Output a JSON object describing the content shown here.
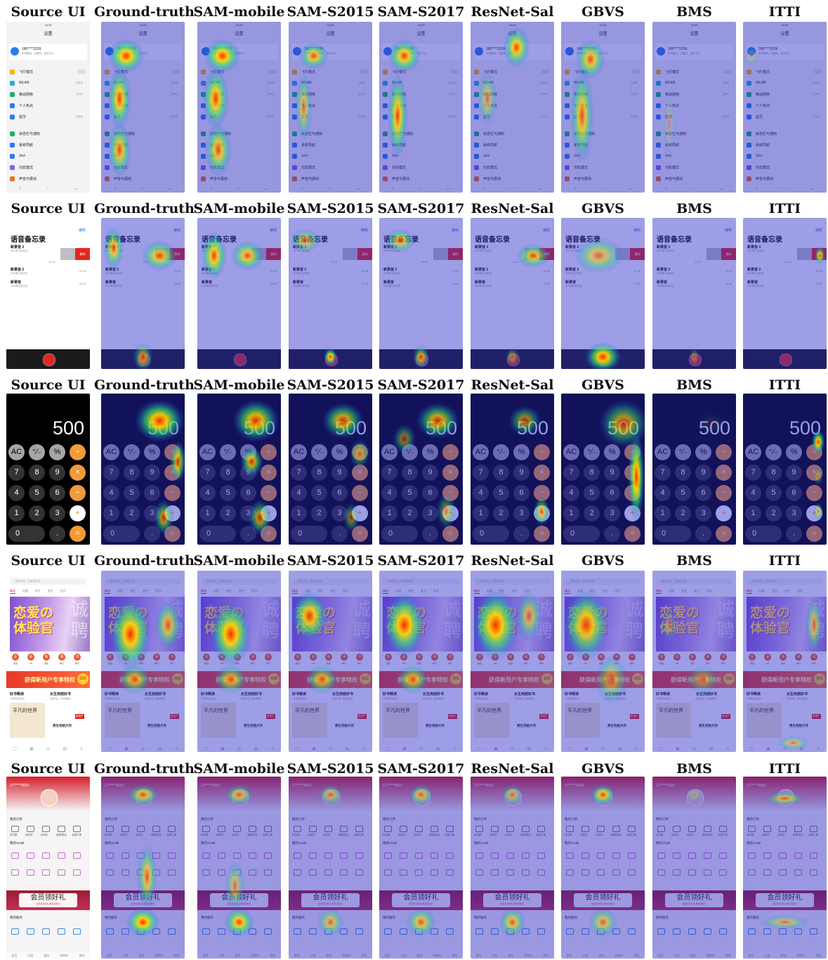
{
  "columns": [
    "Source UI",
    "Ground-truth",
    "SAM-mobile",
    "SAM-S2015",
    "SAM-S2017",
    "ResNet-Sal",
    "GBVS",
    "BMS",
    "ITTI"
  ],
  "rows": [
    {
      "id": "settings",
      "title": "设置",
      "time": "16:35",
      "account": {
        "name": "186****2239",
        "sub": "手机服务、云服务、会员中心"
      },
      "items": [
        {
          "label": "飞行模式",
          "value": "",
          "color": "#f4b400"
        },
        {
          "label": "WLAN",
          "value": "已关闭",
          "color": "#29a8e0"
        },
        {
          "label": "移动网络",
          "value": "无SIM",
          "color": "#1bb26b"
        },
        {
          "label": "个人热点",
          "value": "",
          "color": "#2b7de9"
        },
        {
          "label": "蓝牙",
          "value": "已关闭",
          "color": "#2b7de9"
        },
        {
          "label": "状态栏与通知",
          "value": "",
          "color": "#1bb26b"
        },
        {
          "label": "系统导航",
          "value": "",
          "color": "#2b7de9"
        },
        {
          "label": "Jovi",
          "value": "",
          "color": "#2b7de9"
        },
        {
          "label": "勿扰模式",
          "value": "",
          "color": "#8a5cf5"
        },
        {
          "label": "声音与振动",
          "value": "",
          "color": "#f26b1d"
        }
      ]
    },
    {
      "id": "memo",
      "edit": "编辑",
      "title": "语音备忘录",
      "items": [
        {
          "name": "新录音 3",
          "date": "2017年7月26日",
          "dur": "00:16"
        },
        {
          "name": "",
          "date": "",
          "dur": "01:13"
        },
        {
          "name": "新录音 2",
          "date": "2016年10月8日",
          "dur": "01:16"
        },
        {
          "name": "新录音",
          "date": "2016年9月18日",
          "dur": "03:28"
        }
      ],
      "swipe": [
        "···",
        "删除"
      ]
    },
    {
      "id": "calculator",
      "display": "500",
      "keys": [
        [
          "AC",
          "⁺∕₋",
          "%",
          "÷"
        ],
        [
          "7",
          "8",
          "9",
          "×"
        ],
        [
          "4",
          "5",
          "6",
          "−"
        ],
        [
          "1",
          "2",
          "3",
          "+"
        ],
        [
          "0",
          ".",
          "="
        ]
      ]
    },
    {
      "id": "reader",
      "search": "搜索书名、作者或分类",
      "tabs": [
        "精选",
        "出版",
        "男生",
        "女生",
        "包月"
      ],
      "banner": {
        "line1": "恋爱の",
        "line2": "体验官",
        "side": "诚聘"
      },
      "icons": [
        {
          "glyph": "全",
          "label": "频道"
        },
        {
          "glyph": "会",
          "label": "VIP"
        },
        {
          "glyph": "免",
          "label": "免费"
        },
        {
          "glyph": "读",
          "label": "排行"
        },
        {
          "glyph": "书",
          "label": "排行"
        }
      ],
      "promo": "获得新用户专享特权",
      "go": "GO",
      "sections": [
        {
          "title": "好书畅读",
          "sub": "千部精品免费读"
        },
        {
          "title": "女生完结好书",
          "sub": "完结作品，每本都精彩"
        }
      ],
      "cards": [
        "平凡的世界",
        "男生完结大作",
        "新用户"
      ]
    },
    {
      "id": "mall",
      "phone": "177****4553",
      "orders": "我的订单",
      "order_items": [
        "待付款",
        "待收货",
        "待评价",
        "退换/售后",
        "全部订单"
      ],
      "vmall": "我的Vmall",
      "gift": {
        "title": "会员领好礼",
        "sub": "会员专享好礼 每日领积分"
      },
      "services": "我的服务",
      "bottom": [
        "首页",
        "分类",
        "服务",
        "购物车",
        "我的"
      ]
    }
  ]
}
